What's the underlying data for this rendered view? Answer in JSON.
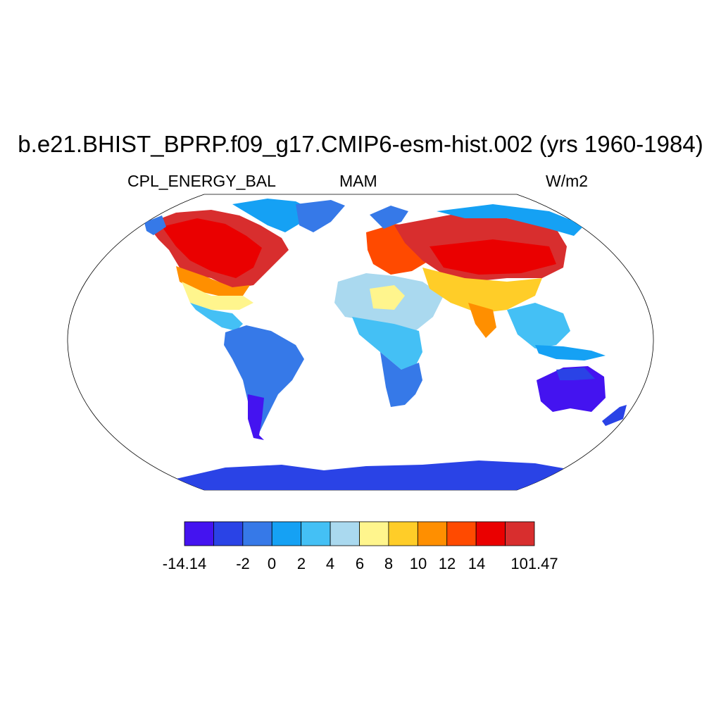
{
  "title": "b.e21.BHIST_BPRP.f09_g17.CMIP6-esm-hist.002 (yrs 1960-1984)",
  "variable": "CPL_ENERGY_BAL",
  "season": "MAM",
  "units": "W/m2",
  "colorbar": {
    "colors": [
      "#4413f0",
      "#2a43e6",
      "#3679e8",
      "#15a1f4",
      "#44c0f5",
      "#aad9ef",
      "#fff58d",
      "#ffcd28",
      "#ff8f00",
      "#ff4a00",
      "#ea0000",
      "#d82e2e"
    ],
    "labels": [
      "-14.14",
      "-2",
      "0",
      "2",
      "4",
      "6",
      "8",
      "10",
      "12",
      "14",
      "101.47"
    ]
  },
  "map_regions": [
    {
      "region": "North America north",
      "level": "12-14 and above"
    },
    {
      "region": "Eastern USA",
      "level": "12-14 and above"
    },
    {
      "region": "Southern USA / Mexico",
      "level": "4-8"
    },
    {
      "region": "Greenland / Canadian Arctic",
      "level": "0-4"
    },
    {
      "region": "South America",
      "level": "-2 to 2"
    },
    {
      "region": "Southern South America",
      "level": "below -2"
    },
    {
      "region": "Sahara / North Africa",
      "level": "4-8"
    },
    {
      "region": "Central Africa",
      "level": "2-6"
    },
    {
      "region": "Southern Africa",
      "level": "-2 to 0"
    },
    {
      "region": "Europe",
      "level": "8-14"
    },
    {
      "region": "Northern Eurasia",
      "level": "14 and above"
    },
    {
      "region": "Siberia Arctic coast",
      "level": "0-4"
    },
    {
      "region": "Middle East / India",
      "level": "6-10"
    },
    {
      "region": "South East Asia",
      "level": "2-6"
    },
    {
      "region": "Australia",
      "level": "below -2"
    },
    {
      "region": "Antarctica",
      "level": "-2 to 0"
    }
  ]
}
